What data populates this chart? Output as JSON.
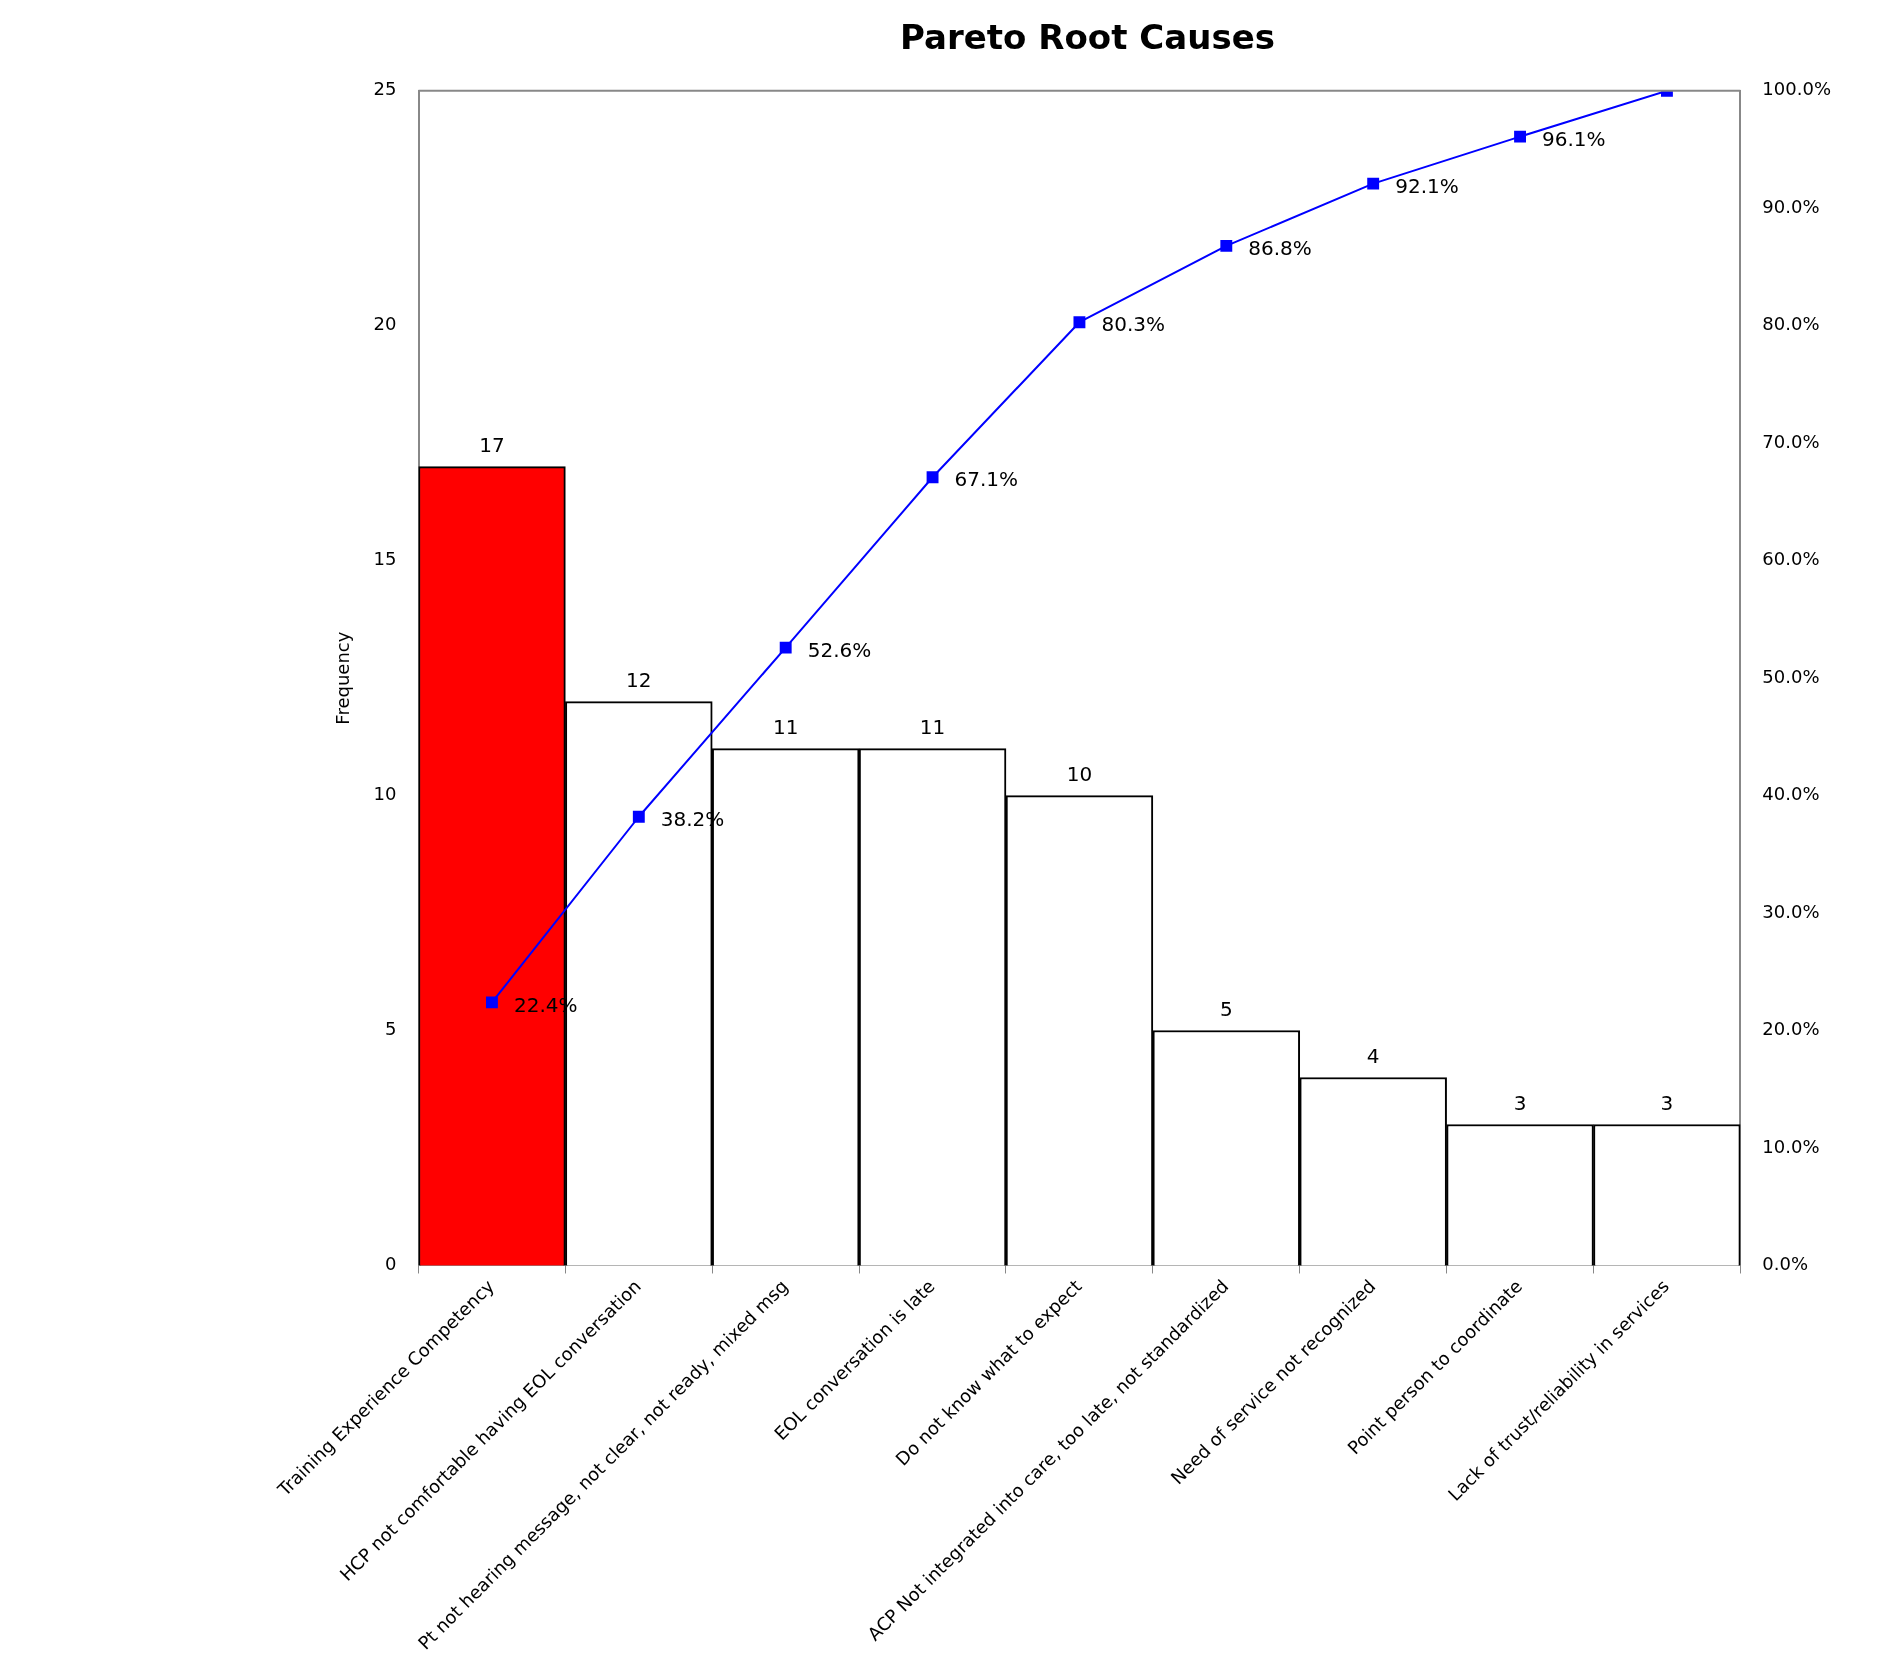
{
  "chart_data": {
    "type": "bar",
    "title": "Pareto Root Causes",
    "ylabel": "Frequency",
    "categories": [
      "Training Experience Competency",
      "HCP not comfortable having EOL conversation",
      "Pt not hearing message, not clear, not ready, mixed msg",
      "EOL conversation is late",
      "Do not know what to expect",
      "ACP Not integrated into care, too late, not standardized",
      "Need of service not recognized",
      "Point person to coordinate",
      "Lack of trust/reliability in services"
    ],
    "series": [
      {
        "values": [
          17,
          12,
          11,
          11,
          10,
          5,
          4,
          3,
          3
        ],
        "colors": [
          "#ff0000",
          "#ffffff",
          "#ffffff",
          "#ffffff",
          "#ffffff",
          "#ffffff",
          "#ffffff",
          "#ffffff",
          "#ffffff"
        ]
      },
      {
        "type": "line",
        "axis": "y2",
        "color": "#0000ff",
        "values": [
          22.4,
          38.2,
          52.6,
          67.1,
          80.3,
          86.8,
          92.1,
          96.1,
          100
        ],
        "value_labels": [
          "22.4%",
          "38.2%",
          "52.6%",
          "67.1%",
          "80.3%",
          "86.8%",
          "92.1%",
          "96.1%",
          null
        ]
      }
    ],
    "data_labels": true,
    "marker": "square",
    "grid": false,
    "legend": false,
    "ylim": [
      0,
      25
    ],
    "yticks": [
      0,
      5,
      10,
      15,
      20,
      25
    ],
    "y2lim": [
      0,
      100
    ],
    "y2ticks": [
      {
        "value": 0,
        "label": "0.0%"
      },
      {
        "value": 10,
        "label": "10.0%"
      },
      {
        "value": 20,
        "label": "20.0%"
      },
      {
        "value": 30,
        "label": "30.0%"
      },
      {
        "value": 40,
        "label": "40.0%"
      },
      {
        "value": 50,
        "label": "50.0%"
      },
      {
        "value": 60,
        "label": "60.0%"
      },
      {
        "value": 70,
        "label": "70.0%"
      },
      {
        "value": 80,
        "label": "80.0%"
      },
      {
        "value": 90,
        "label": "90.0%"
      },
      {
        "value": 100,
        "label": "100.0%"
      }
    ]
  }
}
